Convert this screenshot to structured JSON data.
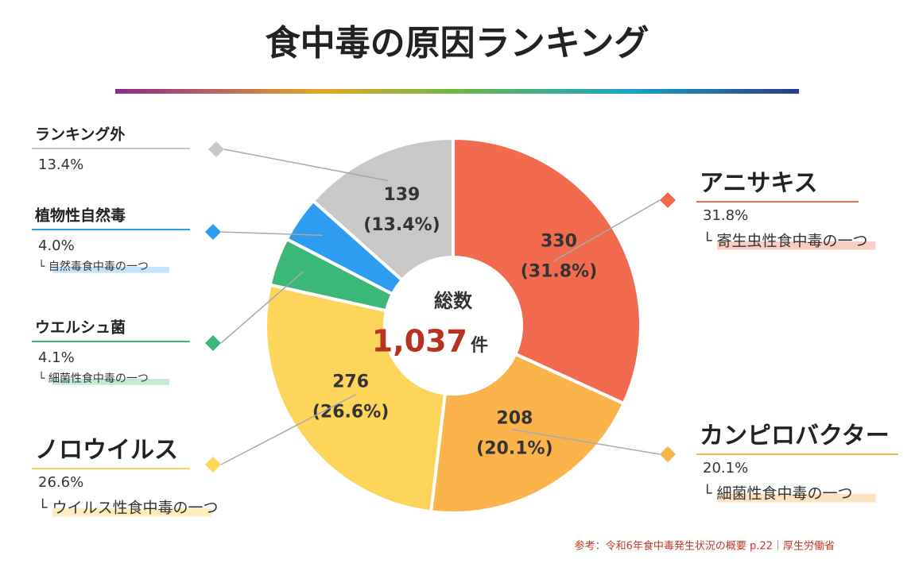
{
  "chart_data": {
    "type": "pie",
    "title": "食中毒の原因ランキング",
    "categories": [
      "アニサキス",
      "カンピロバクター",
      "ノロウイルス",
      "ウエルシュ菌",
      "植物性自然毒",
      "ランキング外"
    ],
    "values": [
      330,
      208,
      276,
      43,
      41,
      139
    ],
    "slice_labels": [
      "(31.8%)",
      "(20.1%)",
      "(26.6%)",
      null,
      null,
      "(13.4%)"
    ],
    "shares": [
      31.8,
      20.1,
      26.6,
      4.1,
      4.0,
      13.4
    ],
    "share_labels": [
      "31.8%",
      "20.1%",
      "26.6%",
      "4.1%",
      "4.0%",
      "13.4%"
    ],
    "notes": [
      "└ 寄生虫性食中毒の一つ",
      "└ 細菌性食中毒の一つ",
      "└ ウイルス性食中毒の一つ",
      "└ 細菌性食中毒の一つ",
      "└ 自然毒食中毒の一つ",
      null
    ],
    "colors": [
      "#f26b4f",
      "#fbb34c",
      "#fdd55a",
      "#3cb878",
      "#2e9cf0",
      "#c8c8c8"
    ],
    "note_colors": [
      "#f9cfc5",
      "#fde3bf",
      "#fdeec0",
      "#c5ead4",
      "#c6e3fa",
      null
    ],
    "total": {
      "label": "総数",
      "value": 1037,
      "value_label": "1,037",
      "unit": "件"
    },
    "source": "参考：令和6年食中毒発生状況の概要 p.22｜厚生労働省"
  }
}
